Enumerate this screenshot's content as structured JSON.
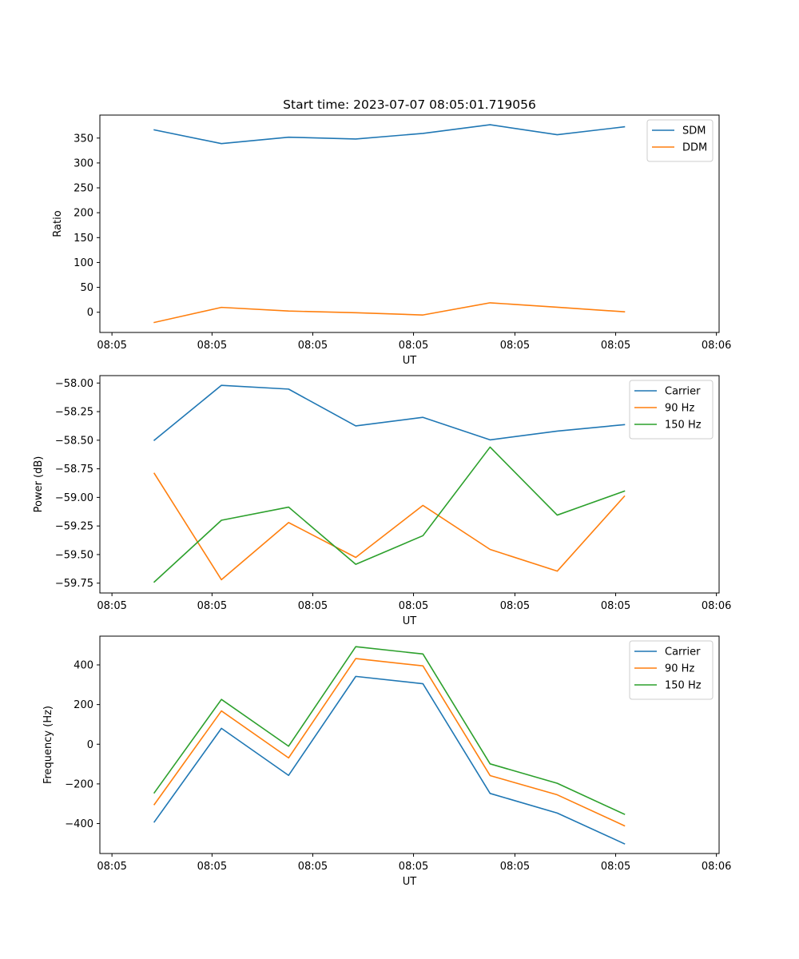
{
  "colors": {
    "blue": "#1f77b4",
    "orange": "#ff7f0e",
    "green": "#2ca02c",
    "axes": "#000000",
    "legend_border": "#cccccc",
    "background": "#ffffff"
  },
  "chart_data": [
    {
      "type": "line",
      "title": "Start time: 2023-07-07 08:05:01.719056",
      "xlabel": "UT",
      "ylabel": "Ratio",
      "x": [
        1,
        2,
        3,
        4,
        5,
        6,
        7,
        8
      ],
      "xlim": [
        0.19,
        9.41
      ],
      "xticks": [
        0.37,
        1.86,
        3.36,
        4.86,
        6.37,
        7.87,
        9.37
      ],
      "xtick_labels": [
        "08:05",
        "08:05",
        "08:05",
        "08:05",
        "08:05",
        "08:05",
        "08:06"
      ],
      "ylim": [
        -40.6,
        396.2
      ],
      "yticks": [
        0,
        50,
        100,
        150,
        200,
        250,
        300,
        350
      ],
      "ytick_labels": [
        "0",
        "50",
        "100",
        "150",
        "200",
        "250",
        "300",
        "350"
      ],
      "legend_position": "top-right",
      "series": [
        {
          "name": "SDM",
          "color": "blue",
          "values": [
            366.5,
            338.9,
            351.8,
            348.1,
            359.4,
            376.8,
            356.7,
            372.6
          ]
        },
        {
          "name": "DDM",
          "color": "orange",
          "values": [
            -20.5,
            9.8,
            2.4,
            -1.0,
            -5.5,
            19.0,
            10.1,
            0.9
          ]
        }
      ]
    },
    {
      "type": "line",
      "title": "",
      "xlabel": "UT",
      "ylabel": "Power (dB)",
      "x": [
        1,
        2,
        3,
        4,
        5,
        6,
        7,
        8
      ],
      "xlim": [
        0.19,
        9.41
      ],
      "xticks": [
        0.37,
        1.86,
        3.36,
        4.86,
        6.37,
        7.87,
        9.37
      ],
      "xtick_labels": [
        "08:05",
        "08:05",
        "08:05",
        "08:05",
        "08:05",
        "08:05",
        "08:06"
      ],
      "ylim": [
        -59.836,
        -57.935
      ],
      "yticks": [
        -59.75,
        -59.5,
        -59.25,
        -59.0,
        -58.75,
        -58.5,
        -58.25,
        -58.0
      ],
      "ytick_labels": [
        "−59.75",
        "−59.50",
        "−59.25",
        "−59.00",
        "−58.75",
        "−58.50",
        "−58.25",
        "−58.00"
      ],
      "legend_position": "top-right",
      "series": [
        {
          "name": "Carrier",
          "color": "blue",
          "values": [
            -58.5,
            -58.02,
            -58.053,
            -58.375,
            -58.3,
            -58.497,
            -58.42,
            -58.364
          ]
        },
        {
          "name": "90 Hz",
          "color": "orange",
          "values": [
            -58.79,
            -59.72,
            -59.22,
            -59.525,
            -59.07,
            -59.455,
            -59.645,
            -58.99
          ]
        },
        {
          "name": "150 Hz",
          "color": "green",
          "values": [
            -59.74,
            -59.2,
            -59.085,
            -59.585,
            -59.335,
            -58.56,
            -59.155,
            -58.945
          ]
        }
      ]
    },
    {
      "type": "line",
      "title": "",
      "xlabel": "UT",
      "ylabel": "Frequency (Hz)",
      "x": [
        1,
        2,
        3,
        4,
        5,
        6,
        7,
        8
      ],
      "xlim": [
        0.19,
        9.41
      ],
      "xticks": [
        0.37,
        1.86,
        3.36,
        4.86,
        6.37,
        7.87,
        9.37
      ],
      "xtick_labels": [
        "08:05",
        "08:05",
        "08:05",
        "08:05",
        "08:05",
        "08:05",
        "08:06"
      ],
      "ylim": [
        -551,
        545
      ],
      "yticks": [
        -400,
        -200,
        0,
        200,
        400
      ],
      "ytick_labels": [
        "−400",
        "−200",
        "0",
        "200",
        "400"
      ],
      "legend_position": "top-right",
      "series": [
        {
          "name": "Carrier",
          "color": "blue",
          "values": [
            -392,
            80,
            -157,
            342,
            305,
            -248,
            -347,
            -502
          ]
        },
        {
          "name": "90 Hz",
          "color": "orange",
          "values": [
            -304,
            168,
            -69,
            432,
            395,
            -158,
            -255,
            -411
          ]
        },
        {
          "name": "150 Hz",
          "color": "green",
          "values": [
            -245,
            226,
            -10,
            492,
            455,
            -99,
            -197,
            -353
          ]
        }
      ]
    }
  ]
}
